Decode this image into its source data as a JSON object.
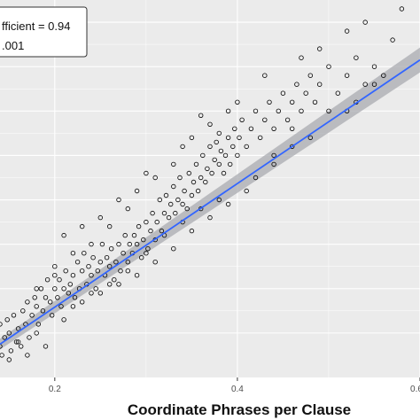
{
  "colors": {
    "panel_background": "#ebebeb",
    "gridline": "#ffffff",
    "point_stroke": "#000000",
    "fit_line": "#3366ff",
    "confidence_band": "#a9abb0"
  },
  "legend": {
    "line1": "fficient = 0.94",
    "line2": ".001"
  },
  "chart_data": {
    "type": "scatter",
    "title": "",
    "xlabel": "Coordinate Phrases per Clause",
    "ylabel": "",
    "xlim": [
      0.14,
      0.6
    ],
    "ylim": [
      0.1,
      0.95
    ],
    "x_ticks": [
      0.2,
      0.4,
      0.6
    ],
    "x_tick_labels": [
      "0.2",
      "0.4",
      "0.6"
    ],
    "grid": true,
    "legend_position": "top-left",
    "fit": {
      "method": "linear",
      "x_start": 0.14,
      "y_start": 0.175,
      "x_end": 0.6,
      "y_end": 0.815,
      "band_halfwidth_start": 0.012,
      "band_halfwidth_end": 0.028
    },
    "series": [
      {
        "points": [
          [
            0.14,
            0.17
          ],
          [
            0.14,
            0.22
          ],
          [
            0.142,
            0.15
          ],
          [
            0.145,
            0.19
          ],
          [
            0.15,
            0.2
          ],
          [
            0.152,
            0.16
          ],
          [
            0.148,
            0.23
          ],
          [
            0.155,
            0.24
          ],
          [
            0.158,
            0.18
          ],
          [
            0.16,
            0.21
          ],
          [
            0.163,
            0.17
          ],
          [
            0.165,
            0.25
          ],
          [
            0.168,
            0.22
          ],
          [
            0.17,
            0.27
          ],
          [
            0.172,
            0.19
          ],
          [
            0.175,
            0.24
          ],
          [
            0.178,
            0.28
          ],
          [
            0.18,
            0.26
          ],
          [
            0.182,
            0.22
          ],
          [
            0.185,
            0.3
          ],
          [
            0.187,
            0.25
          ],
          [
            0.19,
            0.28
          ],
          [
            0.192,
            0.32
          ],
          [
            0.195,
            0.27
          ],
          [
            0.197,
            0.24
          ],
          [
            0.2,
            0.3
          ],
          [
            0.2,
            0.35
          ],
          [
            0.203,
            0.28
          ],
          [
            0.205,
            0.32
          ],
          [
            0.207,
            0.26
          ],
          [
            0.21,
            0.3
          ],
          [
            0.212,
            0.34
          ],
          [
            0.215,
            0.29
          ],
          [
            0.217,
            0.31
          ],
          [
            0.22,
            0.33
          ],
          [
            0.222,
            0.28
          ],
          [
            0.225,
            0.36
          ],
          [
            0.227,
            0.3
          ],
          [
            0.23,
            0.34
          ],
          [
            0.232,
            0.38
          ],
          [
            0.235,
            0.31
          ],
          [
            0.237,
            0.35
          ],
          [
            0.24,
            0.33
          ],
          [
            0.242,
            0.37
          ],
          [
            0.245,
            0.3
          ],
          [
            0.247,
            0.34
          ],
          [
            0.25,
            0.36
          ],
          [
            0.252,
            0.4
          ],
          [
            0.255,
            0.33
          ],
          [
            0.257,
            0.37
          ],
          [
            0.26,
            0.35
          ],
          [
            0.262,
            0.39
          ],
          [
            0.265,
            0.32
          ],
          [
            0.267,
            0.36
          ],
          [
            0.27,
            0.4
          ],
          [
            0.272,
            0.34
          ],
          [
            0.275,
            0.38
          ],
          [
            0.277,
            0.42
          ],
          [
            0.28,
            0.36
          ],
          [
            0.282,
            0.4
          ],
          [
            0.285,
            0.38
          ],
          [
            0.287,
            0.42
          ],
          [
            0.29,
            0.4
          ],
          [
            0.292,
            0.44
          ],
          [
            0.295,
            0.37
          ],
          [
            0.297,
            0.41
          ],
          [
            0.3,
            0.45
          ],
          [
            0.302,
            0.39
          ],
          [
            0.305,
            0.43
          ],
          [
            0.307,
            0.47
          ],
          [
            0.31,
            0.41
          ],
          [
            0.312,
            0.45
          ],
          [
            0.315,
            0.5
          ],
          [
            0.317,
            0.43
          ],
          [
            0.32,
            0.47
          ],
          [
            0.322,
            0.51
          ],
          [
            0.325,
            0.46
          ],
          [
            0.327,
            0.49
          ],
          [
            0.33,
            0.53
          ],
          [
            0.332,
            0.47
          ],
          [
            0.335,
            0.5
          ],
          [
            0.337,
            0.55
          ],
          [
            0.34,
            0.49
          ],
          [
            0.342,
            0.52
          ],
          [
            0.345,
            0.48
          ],
          [
            0.347,
            0.56
          ],
          [
            0.35,
            0.51
          ],
          [
            0.352,
            0.54
          ],
          [
            0.355,
            0.58
          ],
          [
            0.357,
            0.52
          ],
          [
            0.36,
            0.55
          ],
          [
            0.362,
            0.6
          ],
          [
            0.365,
            0.54
          ],
          [
            0.367,
            0.57
          ],
          [
            0.37,
            0.62
          ],
          [
            0.372,
            0.56
          ],
          [
            0.375,
            0.59
          ],
          [
            0.377,
            0.63
          ],
          [
            0.38,
            0.58
          ],
          [
            0.382,
            0.61
          ],
          [
            0.385,
            0.56
          ],
          [
            0.387,
            0.6
          ],
          [
            0.39,
            0.64
          ],
          [
            0.392,
            0.58
          ],
          [
            0.395,
            0.62
          ],
          [
            0.397,
            0.66
          ],
          [
            0.4,
            0.6
          ],
          [
            0.402,
            0.64
          ],
          [
            0.405,
            0.68
          ],
          [
            0.41,
            0.62
          ],
          [
            0.415,
            0.66
          ],
          [
            0.42,
            0.7
          ],
          [
            0.425,
            0.64
          ],
          [
            0.43,
            0.68
          ],
          [
            0.435,
            0.72
          ],
          [
            0.44,
            0.66
          ],
          [
            0.445,
            0.7
          ],
          [
            0.45,
            0.74
          ],
          [
            0.455,
            0.68
          ],
          [
            0.46,
            0.72
          ],
          [
            0.465,
            0.76
          ],
          [
            0.47,
            0.7
          ],
          [
            0.475,
            0.74
          ],
          [
            0.48,
            0.78
          ],
          [
            0.485,
            0.72
          ],
          [
            0.49,
            0.76
          ],
          [
            0.5,
            0.8
          ],
          [
            0.51,
            0.74
          ],
          [
            0.52,
            0.78
          ],
          [
            0.53,
            0.82
          ],
          [
            0.54,
            0.76
          ],
          [
            0.55,
            0.8
          ],
          [
            0.57,
            0.86
          ],
          [
            0.21,
            0.42
          ],
          [
            0.23,
            0.44
          ],
          [
            0.25,
            0.46
          ],
          [
            0.27,
            0.5
          ],
          [
            0.29,
            0.52
          ],
          [
            0.31,
            0.55
          ],
          [
            0.33,
            0.58
          ],
          [
            0.35,
            0.64
          ],
          [
            0.37,
            0.67
          ],
          [
            0.39,
            0.7
          ],
          [
            0.43,
            0.78
          ],
          [
            0.47,
            0.82
          ],
          [
            0.49,
            0.84
          ],
          [
            0.52,
            0.88
          ],
          [
            0.54,
            0.9
          ],
          [
            0.58,
            0.93
          ],
          [
            0.56,
            0.78
          ],
          [
            0.44,
            0.6
          ],
          [
            0.46,
            0.62
          ],
          [
            0.48,
            0.64
          ],
          [
            0.36,
            0.48
          ],
          [
            0.38,
            0.5
          ],
          [
            0.34,
            0.45
          ],
          [
            0.32,
            0.42
          ],
          [
            0.3,
            0.38
          ],
          [
            0.28,
            0.34
          ],
          [
            0.26,
            0.31
          ],
          [
            0.24,
            0.29
          ],
          [
            0.22,
            0.26
          ],
          [
            0.18,
            0.2
          ],
          [
            0.16,
            0.18
          ],
          [
            0.15,
            0.14
          ],
          [
            0.17,
            0.15
          ],
          [
            0.19,
            0.17
          ],
          [
            0.21,
            0.23
          ],
          [
            0.23,
            0.27
          ],
          [
            0.25,
            0.29
          ],
          [
            0.27,
            0.31
          ],
          [
            0.29,
            0.33
          ],
          [
            0.31,
            0.36
          ],
          [
            0.33,
            0.39
          ],
          [
            0.35,
            0.43
          ],
          [
            0.37,
            0.46
          ],
          [
            0.39,
            0.49
          ],
          [
            0.41,
            0.52
          ],
          [
            0.42,
            0.55
          ],
          [
            0.44,
            0.58
          ],
          [
            0.46,
            0.66
          ],
          [
            0.5,
            0.7
          ],
          [
            0.53,
            0.72
          ],
          [
            0.55,
            0.76
          ],
          [
            0.52,
            0.7
          ],
          [
            0.4,
            0.72
          ],
          [
            0.38,
            0.65
          ],
          [
            0.36,
            0.69
          ],
          [
            0.34,
            0.62
          ],
          [
            0.3,
            0.56
          ],
          [
            0.28,
            0.48
          ],
          [
            0.26,
            0.44
          ],
          [
            0.24,
            0.4
          ],
          [
            0.22,
            0.38
          ],
          [
            0.2,
            0.33
          ],
          [
            0.18,
            0.3
          ]
        ]
      }
    ]
  }
}
